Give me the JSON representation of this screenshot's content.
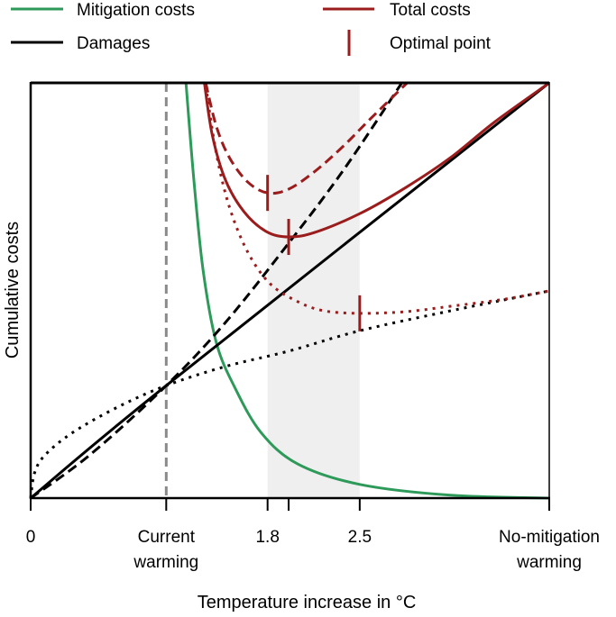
{
  "chart_data": {
    "type": "line",
    "title": "",
    "xlabel": "Temperature increase in °C",
    "ylabel": "Cumulative costs",
    "xlim": [
      0,
      3.94
    ],
    "ylim": [
      0,
      1
    ],
    "grid": false,
    "legend_placement": "top",
    "x_ticks": [
      {
        "value": 0,
        "label": "0"
      },
      {
        "value": 1.03,
        "label": "Current\nwarming"
      },
      {
        "value": 1.8,
        "label": "1.8"
      },
      {
        "value": 1.96,
        "label": ""
      },
      {
        "value": 2.5,
        "label": "2.5"
      },
      {
        "value": 3.94,
        "label": "No-mitigation\nwarming"
      }
    ],
    "current_warming_line": 1.03,
    "shaded_range": [
      1.8,
      2.5
    ],
    "colors": {
      "mitigation": "#2e9a5a",
      "total": "#9b1c1c",
      "damages": "#000000",
      "reference": "#8a8a8a",
      "band": "#efefef"
    },
    "legend": [
      {
        "name": "Mitigation costs",
        "color": "#2e9a5a",
        "symbol": "line"
      },
      {
        "name": "Total costs",
        "color": "#9b1c1c",
        "symbol": "line"
      },
      {
        "name": "Damages",
        "color": "#000000",
        "symbol": "line"
      },
      {
        "name": "Optimal point",
        "color": "#9b1c1c",
        "symbol": "tick"
      }
    ],
    "series": [
      {
        "group": "mitigation",
        "style": "solid",
        "color": "#2e9a5a",
        "points": [
          [
            1.18,
            1
          ],
          [
            1.24,
            0.766
          ],
          [
            1.31,
            0.549
          ],
          [
            1.41,
            0.375
          ],
          [
            1.55,
            0.267
          ],
          [
            1.75,
            0.158
          ],
          [
            2.03,
            0.082
          ],
          [
            2.5,
            0.033
          ],
          [
            3.19,
            0.007
          ],
          [
            3.94,
            0
          ]
        ]
      },
      {
        "group": "damages",
        "style": "solid",
        "color": "#000000",
        "points": [
          [
            0,
            0
          ],
          [
            1.03,
            0.271
          ],
          [
            3.94,
            1
          ]
        ]
      },
      {
        "group": "damages",
        "style": "dashed",
        "color": "#000000",
        "points": [
          [
            0,
            0
          ],
          [
            0.45,
            0.104
          ],
          [
            1.03,
            0.271
          ],
          [
            1.48,
            0.423
          ],
          [
            1.96,
            0.614
          ],
          [
            2.37,
            0.787
          ],
          [
            2.82,
            1
          ]
        ]
      },
      {
        "group": "damages",
        "style": "dotted",
        "color": "#000000",
        "points": [
          [
            0,
            0
          ],
          [
            0.03,
            0.061
          ],
          [
            0.11,
            0.104
          ],
          [
            0.32,
            0.158
          ],
          [
            0.66,
            0.219
          ],
          [
            1.03,
            0.271
          ],
          [
            1.48,
            0.317
          ],
          [
            1.96,
            0.354
          ],
          [
            2.5,
            0.403
          ],
          [
            3.19,
            0.451
          ],
          [
            3.94,
            0.499
          ]
        ]
      },
      {
        "group": "total",
        "style": "solid",
        "color": "#9b1c1c",
        "points": [
          [
            1.32,
            1
          ],
          [
            1.38,
            0.874
          ],
          [
            1.48,
            0.766
          ],
          [
            1.62,
            0.69
          ],
          [
            1.79,
            0.642
          ],
          [
            1.96,
            0.629
          ],
          [
            2.16,
            0.64
          ],
          [
            2.5,
            0.685
          ],
          [
            2.85,
            0.748
          ],
          [
            3.19,
            0.82
          ],
          [
            3.53,
            0.907
          ],
          [
            3.94,
            1
          ]
        ]
      },
      {
        "group": "total",
        "style": "dashed",
        "color": "#9b1c1c",
        "points": [
          [
            1.33,
            1
          ],
          [
            1.41,
            0.896
          ],
          [
            1.51,
            0.82
          ],
          [
            1.65,
            0.761
          ],
          [
            1.8,
            0.735
          ],
          [
            1.96,
            0.744
          ],
          [
            2.16,
            0.787
          ],
          [
            2.37,
            0.846
          ],
          [
            2.58,
            0.913
          ],
          [
            2.86,
            1
          ]
        ]
      },
      {
        "group": "total",
        "style": "dotted",
        "color": "#9b1c1c",
        "points": [
          [
            1.33,
            0.993
          ],
          [
            1.41,
            0.831
          ],
          [
            1.51,
            0.701
          ],
          [
            1.65,
            0.592
          ],
          [
            1.82,
            0.516
          ],
          [
            2.03,
            0.473
          ],
          [
            2.23,
            0.451
          ],
          [
            2.5,
            0.445
          ],
          [
            2.85,
            0.449
          ],
          [
            3.19,
            0.462
          ],
          [
            3.6,
            0.479
          ],
          [
            3.94,
            0.499
          ]
        ]
      }
    ],
    "optimal_points": [
      {
        "x": 1.8,
        "y": 0.735,
        "series_style": "dashed"
      },
      {
        "x": 1.96,
        "y": 0.629,
        "series_style": "solid"
      },
      {
        "x": 2.5,
        "y": 0.445,
        "series_style": "dotted"
      }
    ]
  }
}
